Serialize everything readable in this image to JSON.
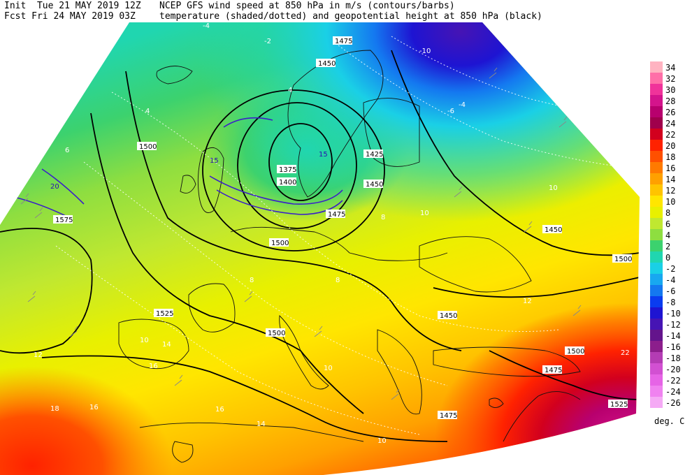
{
  "header": {
    "init_label": "Init  Tue 21 MAY 2019 12Z",
    "fcst_label": "Fcst Fri 24 MAY 2019 03Z",
    "title_line1": "NCEP GFS wind speed at 850 hPa in m/s (contours/barbs)",
    "title_line2": "temperature (shaded/dotted) and geopotential height at 850 hPa (black)"
  },
  "legend": {
    "units": "deg. C",
    "levels": [
      {
        "label": "34",
        "color": "#ffb3c1"
      },
      {
        "label": "32",
        "color": "#ff6fa8"
      },
      {
        "label": "30",
        "color": "#f0339a"
      },
      {
        "label": "28",
        "color": "#d4148c"
      },
      {
        "label": "26",
        "color": "#b8006e"
      },
      {
        "label": "24",
        "color": "#a0004c"
      },
      {
        "label": "22",
        "color": "#d2001e"
      },
      {
        "label": "20",
        "color": "#ff2200"
      },
      {
        "label": "18",
        "color": "#ff5000"
      },
      {
        "label": "16",
        "color": "#ff7a00"
      },
      {
        "label": "14",
        "color": "#ffa000"
      },
      {
        "label": "12",
        "color": "#ffc400"
      },
      {
        "label": "10",
        "color": "#ffe600"
      },
      {
        "label": "8",
        "color": "#e8f000"
      },
      {
        "label": "6",
        "color": "#c0e830"
      },
      {
        "label": "4",
        "color": "#8ede40"
      },
      {
        "label": "2",
        "color": "#3cd26e"
      },
      {
        "label": "0",
        "color": "#20d6b0"
      },
      {
        "label": "-2",
        "color": "#1ad0e6"
      },
      {
        "label": "-4",
        "color": "#18a8f0"
      },
      {
        "label": "-6",
        "color": "#1478f0"
      },
      {
        "label": "-8",
        "color": "#0a3cf0"
      },
      {
        "label": "-10",
        "color": "#1e14d2"
      },
      {
        "label": "-12",
        "color": "#4614b4"
      },
      {
        "label": "-14",
        "color": "#64148c"
      },
      {
        "label": "-16",
        "color": "#8c1e8c"
      },
      {
        "label": "-18",
        "color": "#b43cb4"
      },
      {
        "label": "-20",
        "color": "#d250d2"
      },
      {
        "label": "-22",
        "color": "#e664e6"
      },
      {
        "label": "-24",
        "color": "#f082f0"
      },
      {
        "label": "-26",
        "color": "#f5aaf5"
      }
    ]
  },
  "map": {
    "height_labels": [
      "1500",
      "1500",
      "1525",
      "1575",
      "1500",
      "1450",
      "1425",
      "1450",
      "1500",
      "1450",
      "1475",
      "1525",
      "1500",
      "1400",
      "1375",
      "1475",
      "1475",
      "1475",
      "1450"
    ],
    "temp_labels": [
      "-4",
      "-2",
      "4",
      "4",
      "6",
      "8",
      "8",
      "10",
      "10",
      "12",
      "10",
      "14",
      "16",
      "16",
      "18",
      "14",
      "16",
      "10",
      "12",
      "8",
      "10",
      "22",
      "-10",
      "-6",
      "-4"
    ],
    "wind_labels": [
      "15",
      "20",
      "15"
    ]
  }
}
